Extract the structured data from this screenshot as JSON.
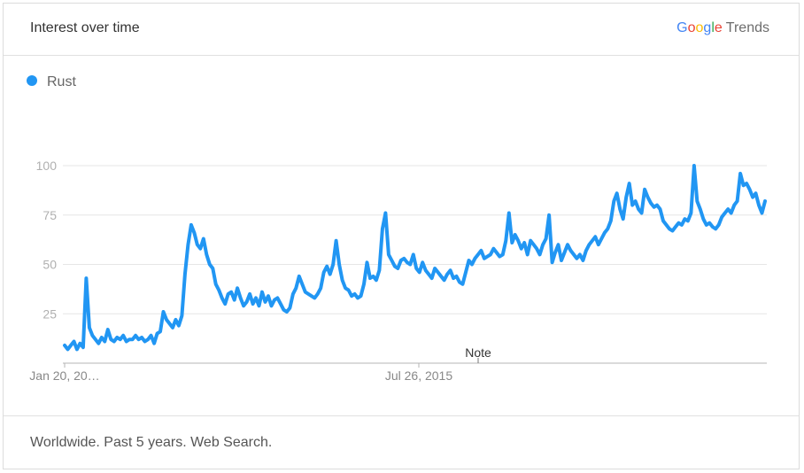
{
  "header": {
    "title": "Interest over time"
  },
  "brand": {
    "google": [
      "G",
      "o",
      "o",
      "g",
      "l",
      "e"
    ],
    "product": "Trends"
  },
  "legend": {
    "label": "Rust"
  },
  "footer": {
    "text": "Worldwide. Past 5 years. Web Search."
  },
  "colors": {
    "series": "#2196f3",
    "grid": "#e6e6e6",
    "axis": "#b5b5b5"
  },
  "chart_data": {
    "type": "line",
    "ylim": [
      0,
      100
    ],
    "yticks": [
      25,
      50,
      75,
      100
    ],
    "xtick_labels": [
      "Jan 20, 20…",
      "Jul 26, 2015"
    ],
    "annotations": [
      "Note"
    ],
    "grid": true,
    "legend_position": "top-left",
    "series": [
      {
        "name": "Rust",
        "values": [
          9,
          7,
          9,
          11,
          7,
          10,
          8,
          43,
          18,
          14,
          12,
          10,
          13,
          11,
          17,
          12,
          11,
          13,
          12,
          14,
          11,
          12,
          12,
          14,
          12,
          13,
          11,
          12,
          14,
          10,
          15,
          16,
          26,
          22,
          20,
          18,
          22,
          19,
          24,
          45,
          60,
          70,
          66,
          60,
          58,
          63,
          55,
          50,
          48,
          40,
          37,
          33,
          30,
          35,
          36,
          32,
          38,
          33,
          29,
          31,
          35,
          30,
          33,
          29,
          36,
          31,
          34,
          29,
          32,
          33,
          30,
          27,
          26,
          28,
          35,
          38,
          44,
          40,
          36,
          35,
          34,
          33,
          35,
          38,
          46,
          49,
          45,
          50,
          62,
          50,
          42,
          38,
          37,
          34,
          35,
          33,
          34,
          40,
          51,
          43,
          44,
          42,
          47,
          68,
          76,
          55,
          52,
          49,
          48,
          52,
          53,
          51,
          50,
          55,
          48,
          46,
          51,
          47,
          45,
          43,
          48,
          46,
          44,
          42,
          45,
          47,
          43,
          44,
          41,
          40,
          46,
          52,
          50,
          53,
          55,
          57,
          53,
          54,
          55,
          58,
          56,
          54,
          55,
          62,
          76,
          61,
          65,
          62,
          58,
          61,
          55,
          62,
          60,
          58,
          55,
          60,
          63,
          75,
          51,
          56,
          60,
          52,
          56,
          60,
          57,
          55,
          53,
          55,
          52,
          57,
          60,
          62,
          64,
          60,
          63,
          66,
          68,
          72,
          82,
          86,
          78,
          73,
          84,
          91,
          80,
          82,
          78,
          76,
          88,
          84,
          81,
          79,
          80,
          78,
          72,
          70,
          68,
          67,
          69,
          71,
          70,
          73,
          72,
          76,
          100,
          82,
          78,
          73,
          70,
          71,
          69,
          68,
          70,
          74,
          76,
          78,
          76,
          80,
          82,
          96,
          90,
          91,
          88,
          84,
          86,
          80,
          76,
          82
        ]
      }
    ]
  }
}
